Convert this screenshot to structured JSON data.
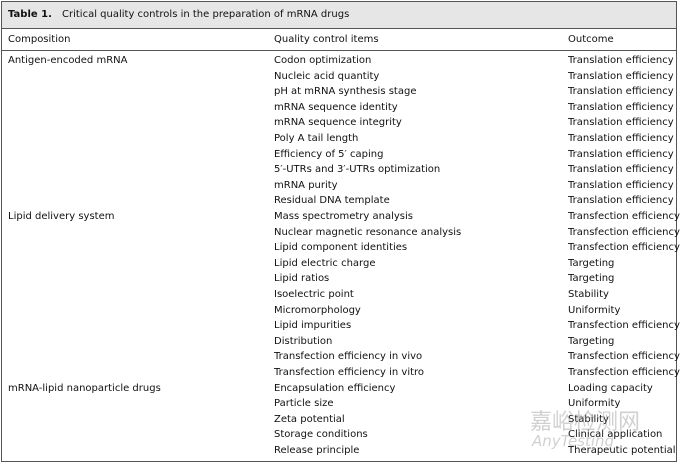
{
  "table": {
    "label": "Table 1.",
    "title": "Critical quality controls in the preparation of mRNA drugs",
    "headers": [
      "Composition",
      "Quality control items",
      "Outcome"
    ],
    "groups": [
      {
        "composition": "Antigen-encoded mRNA",
        "rows": [
          [
            "Codon optimization",
            "Translation efficiency"
          ],
          [
            "Nucleic acid quantity",
            "Translation efficiency"
          ],
          [
            "pH at mRNA synthesis stage",
            "Translation efficiency"
          ],
          [
            "mRNA sequence identity",
            "Translation efficiency"
          ],
          [
            "mRNA sequence integrity",
            "Translation efficiency"
          ],
          [
            "Poly A tail length",
            "Translation efficiency"
          ],
          [
            "Efficiency of 5′ caping",
            "Translation efficiency"
          ],
          [
            "5′-UTRs and 3′-UTRs optimization",
            "Translation efficiency"
          ],
          [
            "mRNA purity",
            "Translation efficiency"
          ],
          [
            "Residual DNA template",
            "Translation efficiency"
          ]
        ]
      },
      {
        "composition": "Lipid delivery system",
        "rows": [
          [
            "Mass spectrometry analysis",
            "Transfection efficiency"
          ],
          [
            "Nuclear magnetic resonance analysis",
            "Transfection efficiency"
          ],
          [
            "Lipid component identities",
            "Transfection efficiency"
          ],
          [
            "Lipid electric charge",
            "Targeting"
          ],
          [
            "Lipid ratios",
            "Targeting"
          ],
          [
            "Isoelectric point",
            "Stability"
          ],
          [
            "Micromorphology",
            "Uniformity"
          ],
          [
            "Lipid impurities",
            "Transfection efficiency"
          ],
          [
            "Distribution",
            "Targeting"
          ],
          [
            "Transfection efficiency in vivo",
            "Transfection efficiency"
          ],
          [
            "Transfection efficiency in vitro",
            "Transfection efficiency"
          ]
        ]
      },
      {
        "composition": "mRNA-lipid nanoparticle drugs",
        "rows": [
          [
            "Encapsulation efficiency",
            "Loading capacity"
          ],
          [
            "Particle size",
            "Uniformity"
          ],
          [
            "Zeta potential",
            "Stability"
          ],
          [
            "Storage conditions",
            "Clinical application"
          ],
          [
            "Release principle",
            "Therapeutic potential"
          ]
        ]
      }
    ]
  },
  "watermark": {
    "cn": "嘉峪检测网",
    "en": "AnyTesting"
  }
}
